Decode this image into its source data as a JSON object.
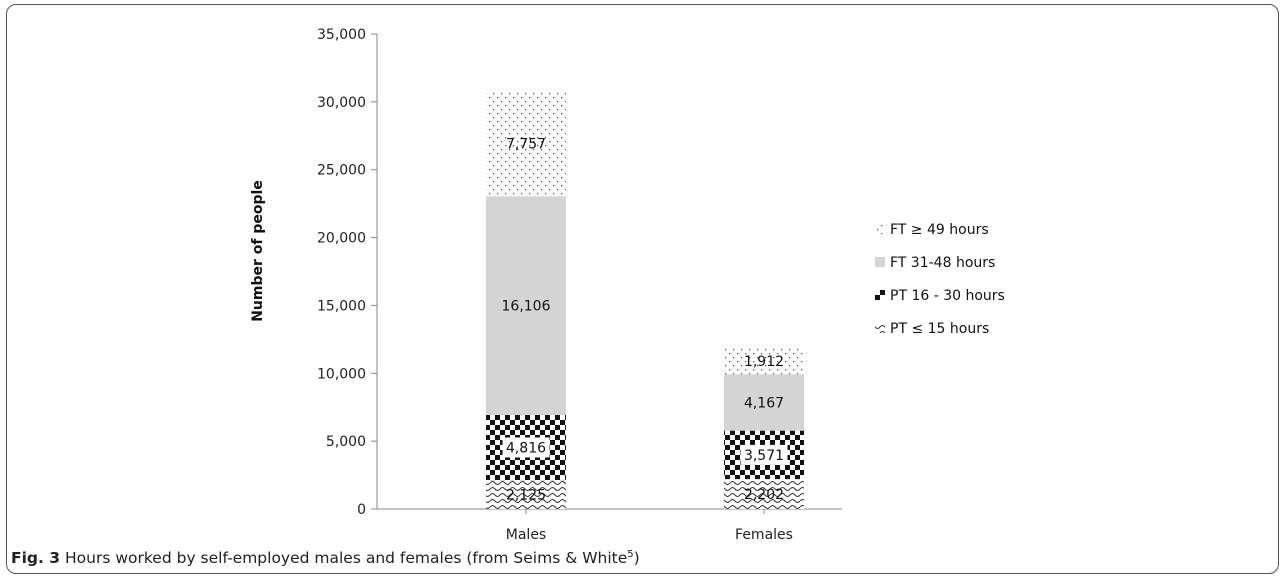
{
  "caption": {
    "label": "Fig. 3",
    "text": " Hours worked by self-employed males and females (from Seims & White",
    "ref": "5",
    "close": ")"
  },
  "chart_data": {
    "type": "bar",
    "stacked": true,
    "categories": [
      "Males",
      "Females"
    ],
    "ylabel": "Number of people",
    "ylim": [
      0,
      35000
    ],
    "yticks": [
      0,
      5000,
      10000,
      15000,
      20000,
      25000,
      30000,
      35000
    ],
    "ytick_labels": [
      "0",
      "5,000",
      "10,000",
      "15,000",
      "20,000",
      "25,000",
      "30,000",
      "35,000"
    ],
    "legend_position": "right",
    "grid": false,
    "series": [
      {
        "name": "PT ≤ 15 hours",
        "pattern": "wave",
        "values": [
          2125,
          2202
        ],
        "labels": [
          "2,125",
          "2,202"
        ]
      },
      {
        "name": "PT 16 - 30 hours",
        "pattern": "checker",
        "values": [
          4816,
          3571
        ],
        "labels": [
          "4,816",
          "3,571"
        ]
      },
      {
        "name": "FT 31-48 hours",
        "pattern": "solid-gray",
        "values": [
          16106,
          4167
        ],
        "labels": [
          "16,106",
          "4,167"
        ]
      },
      {
        "name": "FT ≥ 49 hours",
        "pattern": "dots",
        "values": [
          7757,
          1912
        ],
        "labels": [
          "7,757",
          "1,912"
        ]
      }
    ]
  }
}
